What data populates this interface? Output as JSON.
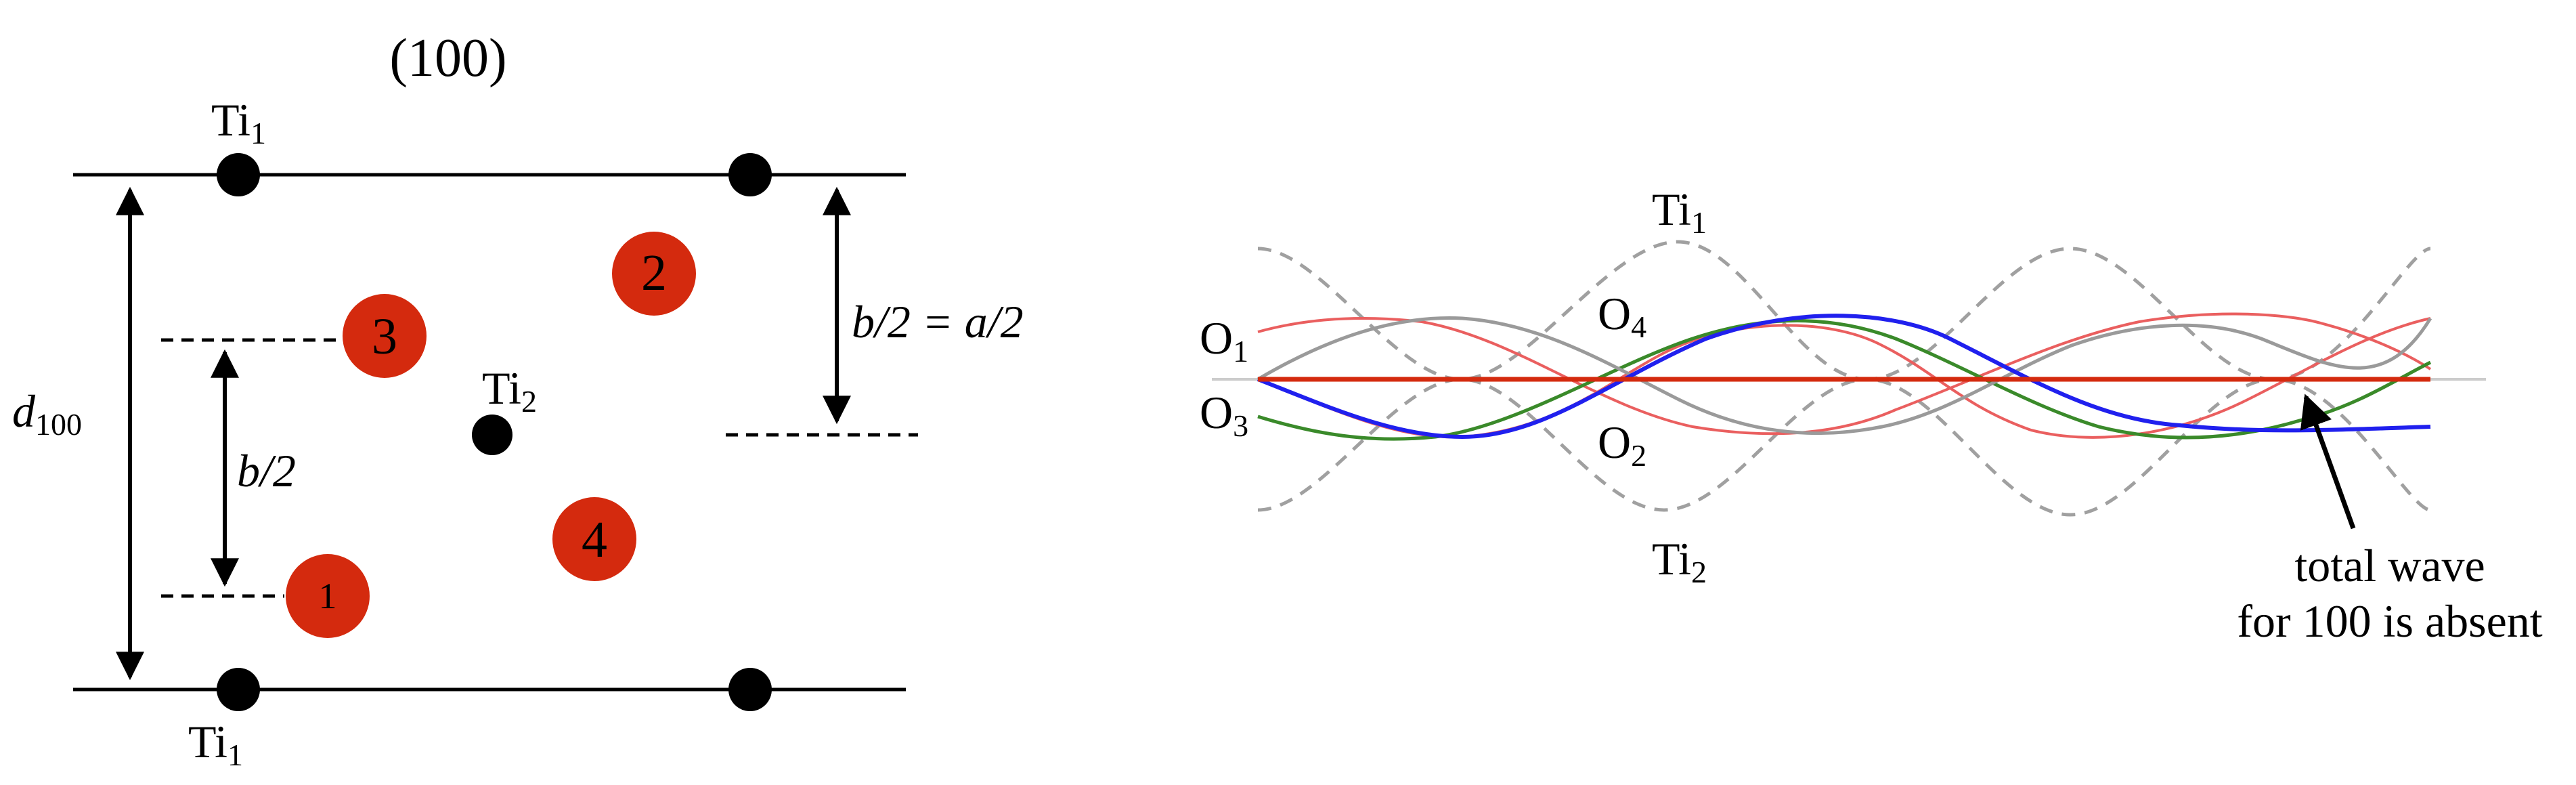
{
  "left_panel": {
    "title": "(100)",
    "ti1_top": {
      "base": "Ti",
      "sub": "1"
    },
    "ti1_bottom": {
      "base": "Ti",
      "sub": "1"
    },
    "ti2": {
      "base": "Ti",
      "sub": "2"
    },
    "d_label": {
      "base": "d",
      "sub": "100"
    },
    "half_b_label": "b/2",
    "half_b_eq_label": "b/2 = a/2",
    "oxygen_numbers": [
      "1",
      "2",
      "3",
      "4"
    ],
    "colors": {
      "oxygen": "#d42a0e",
      "atom": "#000000",
      "line": "#000000"
    }
  },
  "right_panel": {
    "wave_labels": {
      "ti1": {
        "base": "Ti",
        "sub": "1"
      },
      "ti2": {
        "base": "Ti",
        "sub": "2"
      },
      "o1": {
        "base": "O",
        "sub": "1"
      },
      "o2": {
        "base": "O",
        "sub": "2"
      },
      "o3": {
        "base": "O",
        "sub": "3"
      },
      "o4": {
        "base": "O",
        "sub": "4"
      }
    },
    "annotation_line1": "total wave",
    "annotation_line2": "for 100 is absent",
    "colors": {
      "ti_waves": "#a0a0a0",
      "o1": "#ea5f5f",
      "o2": "#ea5f5f",
      "o3": "#3a8a2a",
      "o4": "#9a9a9a",
      "blue": "#2020ee",
      "total": "#d42a0e",
      "axis": "#cccccc"
    }
  }
}
